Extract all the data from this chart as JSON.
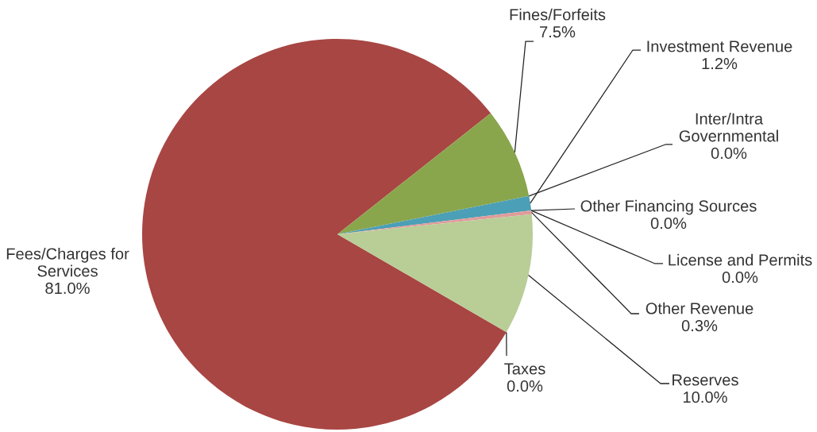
{
  "chart_data": {
    "type": "pie",
    "categories": [
      "Fees/Charges for Services",
      "Fines/Forfeits",
      "Inter/Intra Governmental",
      "Investment Revenue",
      "License and Permits",
      "Other Financing Sources",
      "Other Revenue",
      "Reserves",
      "Taxes"
    ],
    "values": [
      81.0,
      7.5,
      0.0,
      1.2,
      0.0,
      0.0,
      0.3,
      10.0,
      0.0
    ],
    "colors": [
      "#a84643",
      "#8aa64d",
      null,
      "#4b9fb6",
      null,
      null,
      "#e09c9a",
      "#b9cd97",
      null
    ],
    "value_labels": [
      "81.0%",
      "7.5%",
      "0.0%",
      "1.2%",
      "0.0%",
      "0.0%",
      "0.3%",
      "10.0%",
      "0.0%"
    ]
  }
}
